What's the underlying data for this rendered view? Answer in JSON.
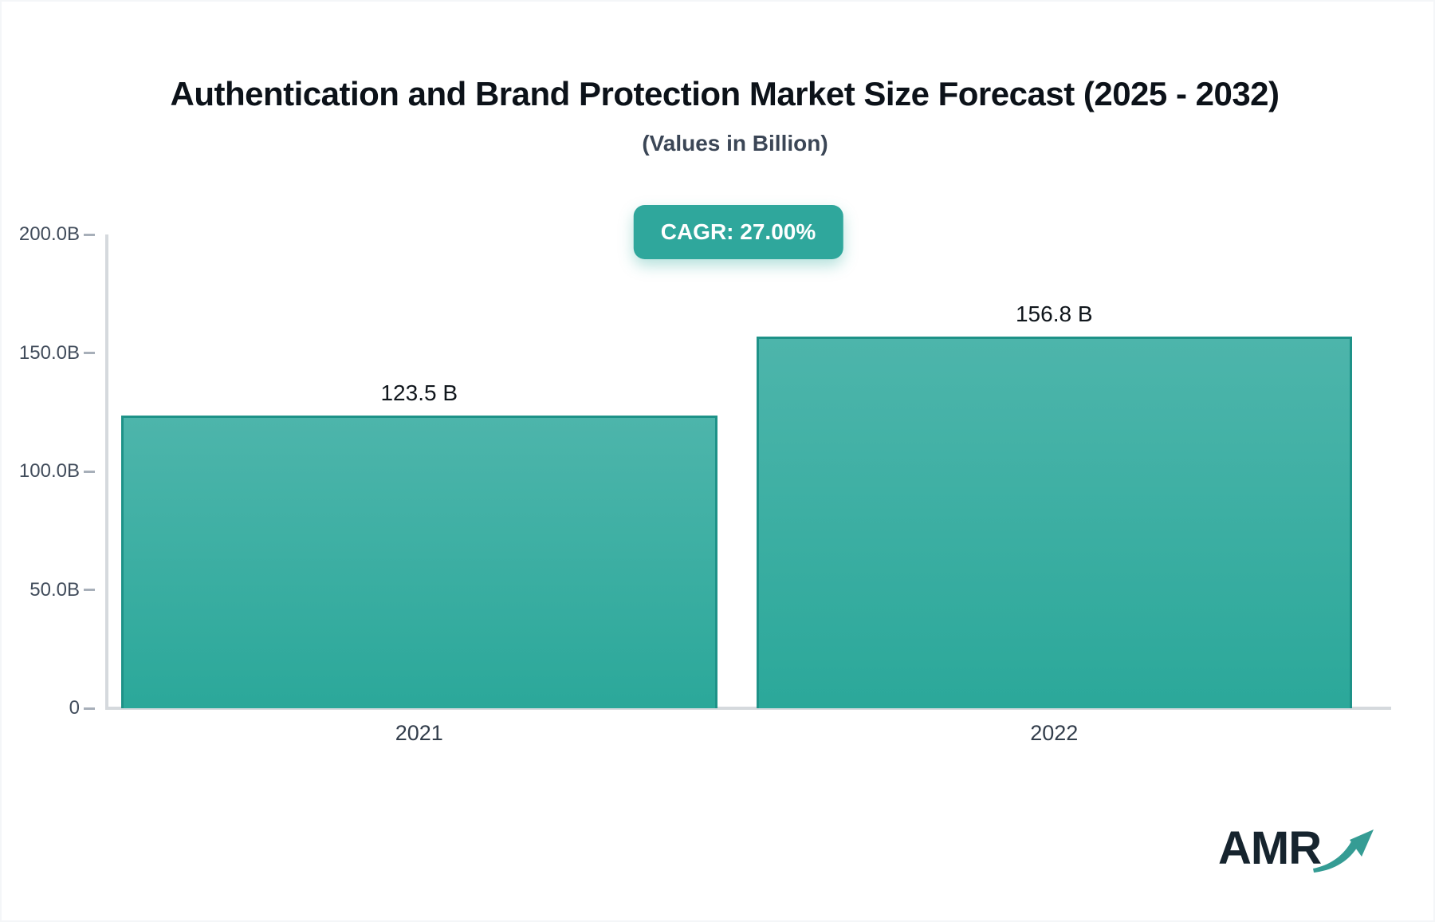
{
  "chart": {
    "title": "Authentication and Brand Protection Market Size Forecast (2025 - 2032)",
    "subtitle": "(Values in Billion)",
    "cagr_label": "CAGR: 27.00%"
  },
  "chart_data": {
    "type": "bar",
    "title": "Authentication and Brand Protection Market Size Forecast (2025 - 2032)",
    "subtitle": "(Values in Billion)",
    "annotation": "CAGR: 27.00%",
    "categories": [
      "2021",
      "2022"
    ],
    "values": [
      123.5,
      156.8
    ],
    "value_labels": [
      "123.5 B",
      "156.8 B"
    ],
    "xlabel": "",
    "ylabel": "",
    "ylim": [
      0,
      200
    ],
    "y_ticks": [
      {
        "label": "200.0B",
        "value": 200
      },
      {
        "label": "150.0B",
        "value": 150
      },
      {
        "label": "100.0B",
        "value": 100
      },
      {
        "label": "50.0B",
        "value": 50
      },
      {
        "label": "0",
        "value": 0
      }
    ],
    "grid": false,
    "legend": false,
    "bar_gradient_top": "#4db5ab",
    "bar_gradient_bottom": "#2ba89a",
    "bar_border_color": "#1e9288"
  },
  "colors": {
    "accent_teal": "#2fa79c",
    "axis_line": "#d5d9dd",
    "tick_text": "#414c5b",
    "title_text": "#0c1219",
    "logo_text": "#16242e",
    "logo_arrow": "#359c94"
  },
  "branding": {
    "logo_text": "AMR"
  }
}
